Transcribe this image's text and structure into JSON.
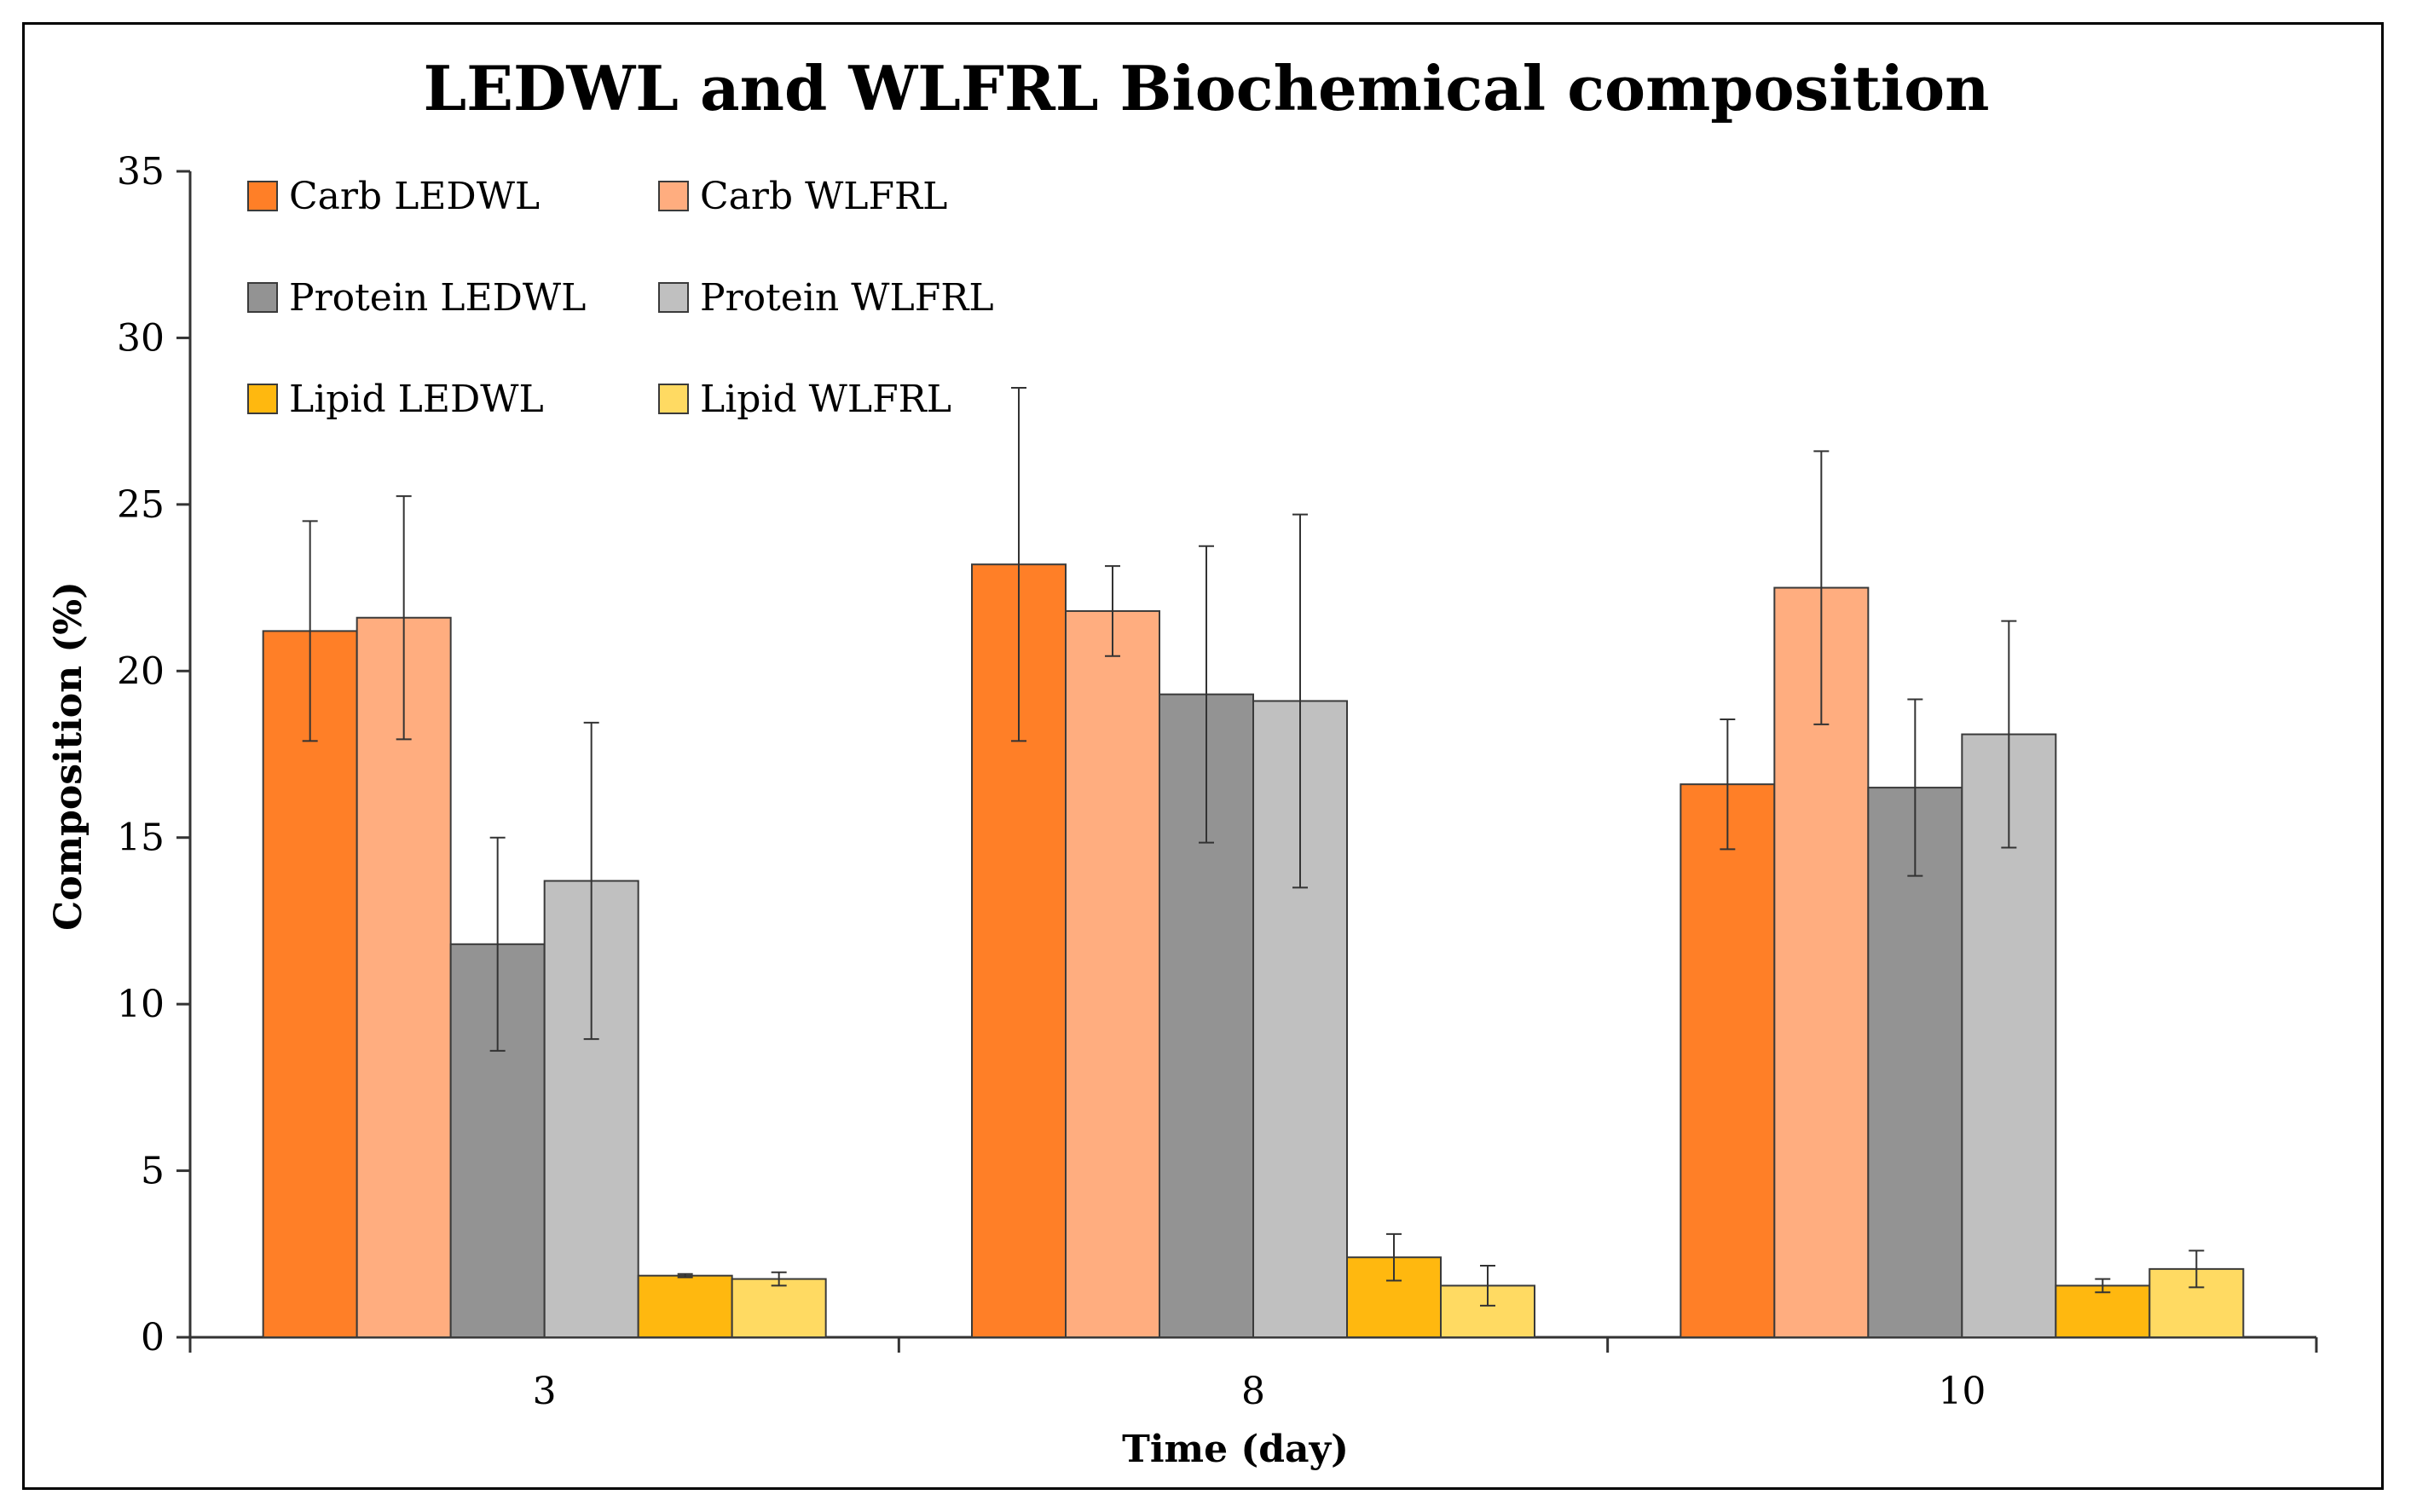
{
  "chart_data": {
    "type": "bar",
    "title": "LEDWL and WLFRL Biochemical composition",
    "xlabel": "Time (day)",
    "ylabel": "Composition (%)",
    "categories": [
      "3",
      "8",
      "10"
    ],
    "ylim": [
      0,
      35
    ],
    "yticks": [
      0,
      5,
      10,
      15,
      20,
      25,
      30,
      35
    ],
    "grid": false,
    "legend_position": "top-left",
    "series": [
      {
        "name": "Carb LEDWL",
        "color": "#FF7F27",
        "values": [
          21.2,
          23.2,
          16.6
        ],
        "errors": [
          3.3,
          5.3,
          1.95
        ]
      },
      {
        "name": "Carb WLFRL",
        "color": "#FFAD7F",
        "values": [
          21.6,
          21.8,
          22.5
        ],
        "errors": [
          3.65,
          1.35,
          4.1
        ]
      },
      {
        "name": "Protein LEDWL",
        "color": "#939393",
        "values": [
          11.8,
          19.3,
          16.5
        ],
        "errors": [
          3.2,
          4.45,
          2.65
        ]
      },
      {
        "name": "Protein WLFRL",
        "color": "#C0C0C0",
        "values": [
          13.7,
          19.1,
          18.1
        ],
        "errors": [
          4.75,
          5.6,
          3.4
        ]
      },
      {
        "name": "Lipid LEDWL",
        "color": "#FFB80F",
        "values": [
          1.85,
          2.4,
          1.55
        ],
        "errors": [
          0.05,
          0.7,
          0.2
        ]
      },
      {
        "name": "Lipid WLFRL",
        "color": "#FFDA62",
        "values": [
          1.75,
          1.55,
          2.05
        ],
        "errors": [
          0.2,
          0.6,
          0.55
        ]
      }
    ]
  }
}
